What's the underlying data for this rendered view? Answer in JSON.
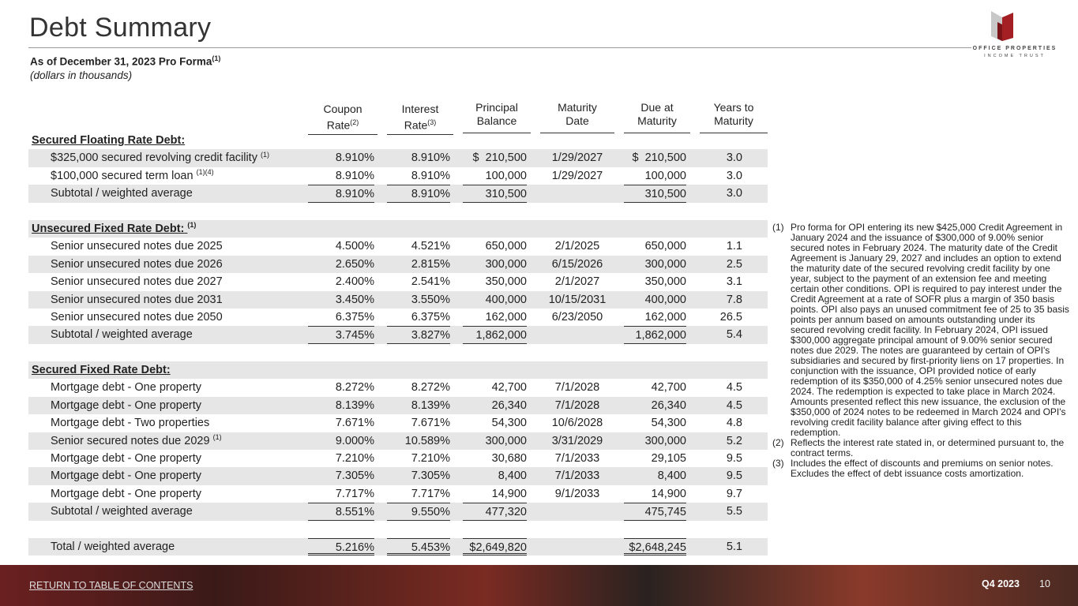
{
  "header": {
    "title": "Debt Summary",
    "subtitle": "As of December 31, 2023 Pro Forma",
    "subtitle_sup": "(1)",
    "note": "(dollars in thousands)",
    "logo": [
      "OFFICE PROPERTIES",
      "INCOME TRUST"
    ]
  },
  "table": {
    "columns": [
      {
        "key": "coupon",
        "lines": [
          "Coupon",
          "Rate"
        ],
        "sup": "(2)"
      },
      {
        "key": "interest",
        "lines": [
          "Interest",
          "Rate"
        ],
        "sup": "(3)"
      },
      {
        "key": "principal",
        "lines": [
          "Principal",
          "Balance"
        ]
      },
      {
        "key": "maturity",
        "lines": [
          "Maturity",
          "Date"
        ]
      },
      {
        "key": "due",
        "lines": [
          "Due at",
          "Maturity"
        ]
      },
      {
        "key": "years",
        "lines": [
          "Years to",
          "Maturity"
        ]
      }
    ],
    "sections": [
      {
        "title": "Secured Floating Rate Debt:",
        "rows": [
          {
            "label": "$325,000 secured revolving credit facility",
            "sup": "(1)",
            "coupon": "8.910%",
            "interest": "8.910%",
            "principal": "$  210,500",
            "maturity": "1/29/2027",
            "due": "$  210,500",
            "years": "3.0"
          },
          {
            "label": "$100,000 secured term loan",
            "sup": "(1)(4)",
            "coupon": "8.910%",
            "interest": "8.910%",
            "principal": "100,000",
            "maturity": "1/29/2027",
            "due": "100,000",
            "years": "3.0"
          }
        ],
        "subtotal": {
          "label": "Subtotal / weighted average",
          "coupon": "8.910%",
          "interest": "8.910%",
          "principal": "310,500",
          "due": "310,500",
          "years": "3.0"
        }
      },
      {
        "title": "Unsecured Fixed Rate Debt:",
        "title_sup": "(1)",
        "rows": [
          {
            "label": "Senior unsecured notes due 2025",
            "coupon": "4.500%",
            "interest": "4.521%",
            "principal": "650,000",
            "maturity": "2/1/2025",
            "due": "650,000",
            "years": "1.1"
          },
          {
            "label": "Senior unsecured notes due 2026",
            "coupon": "2.650%",
            "interest": "2.815%",
            "principal": "300,000",
            "maturity": "6/15/2026",
            "due": "300,000",
            "years": "2.5"
          },
          {
            "label": "Senior unsecured notes due 2027",
            "coupon": "2.400%",
            "interest": "2.541%",
            "principal": "350,000",
            "maturity": "2/1/2027",
            "due": "350,000",
            "years": "3.1"
          },
          {
            "label": "Senior unsecured notes due 2031",
            "coupon": "3.450%",
            "interest": "3.550%",
            "principal": "400,000",
            "maturity": "10/15/2031",
            "due": "400,000",
            "years": "7.8"
          },
          {
            "label": "Senior unsecured notes due 2050",
            "coupon": "6.375%",
            "interest": "6.375%",
            "principal": "162,000",
            "maturity": "6/23/2050",
            "due": "162,000",
            "years": "26.5"
          }
        ],
        "subtotal": {
          "label": "Subtotal / weighted average",
          "coupon": "3.745%",
          "interest": "3.827%",
          "principal": "1,862,000",
          "due": "1,862,000",
          "years": "5.4"
        }
      },
      {
        "title": "Secured Fixed Rate Debt:",
        "rows": [
          {
            "label": "Mortgage debt - One property",
            "coupon": "8.272%",
            "interest": "8.272%",
            "principal": "42,700",
            "maturity": "7/1/2028",
            "due": "42,700",
            "years": "4.5"
          },
          {
            "label": "Mortgage debt - One property",
            "coupon": "8.139%",
            "interest": "8.139%",
            "principal": "26,340",
            "maturity": "7/1/2028",
            "due": "26,340",
            "years": "4.5"
          },
          {
            "label": "Mortgage debt - Two properties",
            "coupon": "7.671%",
            "interest": "7.671%",
            "principal": "54,300",
            "maturity": "10/6/2028",
            "due": "54,300",
            "years": "4.8"
          },
          {
            "label": "Senior secured notes due 2029",
            "sup": "(1)",
            "coupon": "9.000%",
            "interest": "10.589%",
            "principal": "300,000",
            "maturity": "3/31/2029",
            "due": "300,000",
            "years": "5.2"
          },
          {
            "label": "Mortgage debt - One property",
            "coupon": "7.210%",
            "interest": "7.210%",
            "principal": "30,680",
            "maturity": "7/1/2033",
            "due": "29,105",
            "years": "9.5"
          },
          {
            "label": "Mortgage debt - One property",
            "coupon": "7.305%",
            "interest": "7.305%",
            "principal": "8,400",
            "maturity": "7/1/2033",
            "due": "8,400",
            "years": "9.5"
          },
          {
            "label": "Mortgage debt - One property",
            "coupon": "7.717%",
            "interest": "7.717%",
            "principal": "14,900",
            "maturity": "9/1/2033",
            "due": "14,900",
            "years": "9.7"
          }
        ],
        "subtotal": {
          "label": "Subtotal / weighted average",
          "coupon": "8.551%",
          "interest": "9.550%",
          "principal": "477,320",
          "due": "475,745",
          "years": "5.5"
        }
      }
    ],
    "total": {
      "label": "Total / weighted average",
      "coupon": "5.216%",
      "interest": "5.453%",
      "principal": "$2,649,820",
      "due": "$2,648,245",
      "years": "5.1"
    }
  },
  "footnotes": [
    {
      "marker": "(1)",
      "text": "Pro forma for OPI entering its new $425,000 Credit Agreement in January 2024 and the issuance of $300,000 of 9.00% senior secured notes in February 2024. The maturity date of the Credit Agreement is January 29, 2027 and includes an option to extend the maturity date of the secured revolving credit facility by one year, subject to the payment of an extension fee and meeting certain other conditions. OPI is required to pay interest under the Credit Agreement at a rate of SOFR plus a margin of 350 basis points. OPI also pays an unused commitment fee of 25 to 35 basis points per annum based on amounts outstanding under its secured revolving credit facility. In February 2024, OPI issued $300,000 aggregate principal amount of 9.00% senior secured notes due 2029. The notes are guaranteed by certain of OPI's subsidiaries and secured by first-priority liens on 17 properties. In conjunction with the issuance, OPI provided notice of early redemption of its $350,000 of 4.25% senior unsecured notes due 2024. The redemption is expected to take place in March 2024. Amounts presented reflect this new issuance, the exclusion of the $350,000 of 2024 notes to be redeemed in March 2024 and OPI's revolving credit facility balance after giving effect to this redemption."
    },
    {
      "marker": "(2)",
      "text": "Reflects the interest rate stated in, or determined pursuant to, the contract terms."
    },
    {
      "marker": "(3)",
      "text": "Includes the effect of discounts and premiums on senior notes. Excludes the effect of debt issuance costs amortization."
    }
  ],
  "footer": {
    "link": "RETURN TO TABLE OF CONTENTS",
    "period": "Q4 2023",
    "page": "10"
  }
}
